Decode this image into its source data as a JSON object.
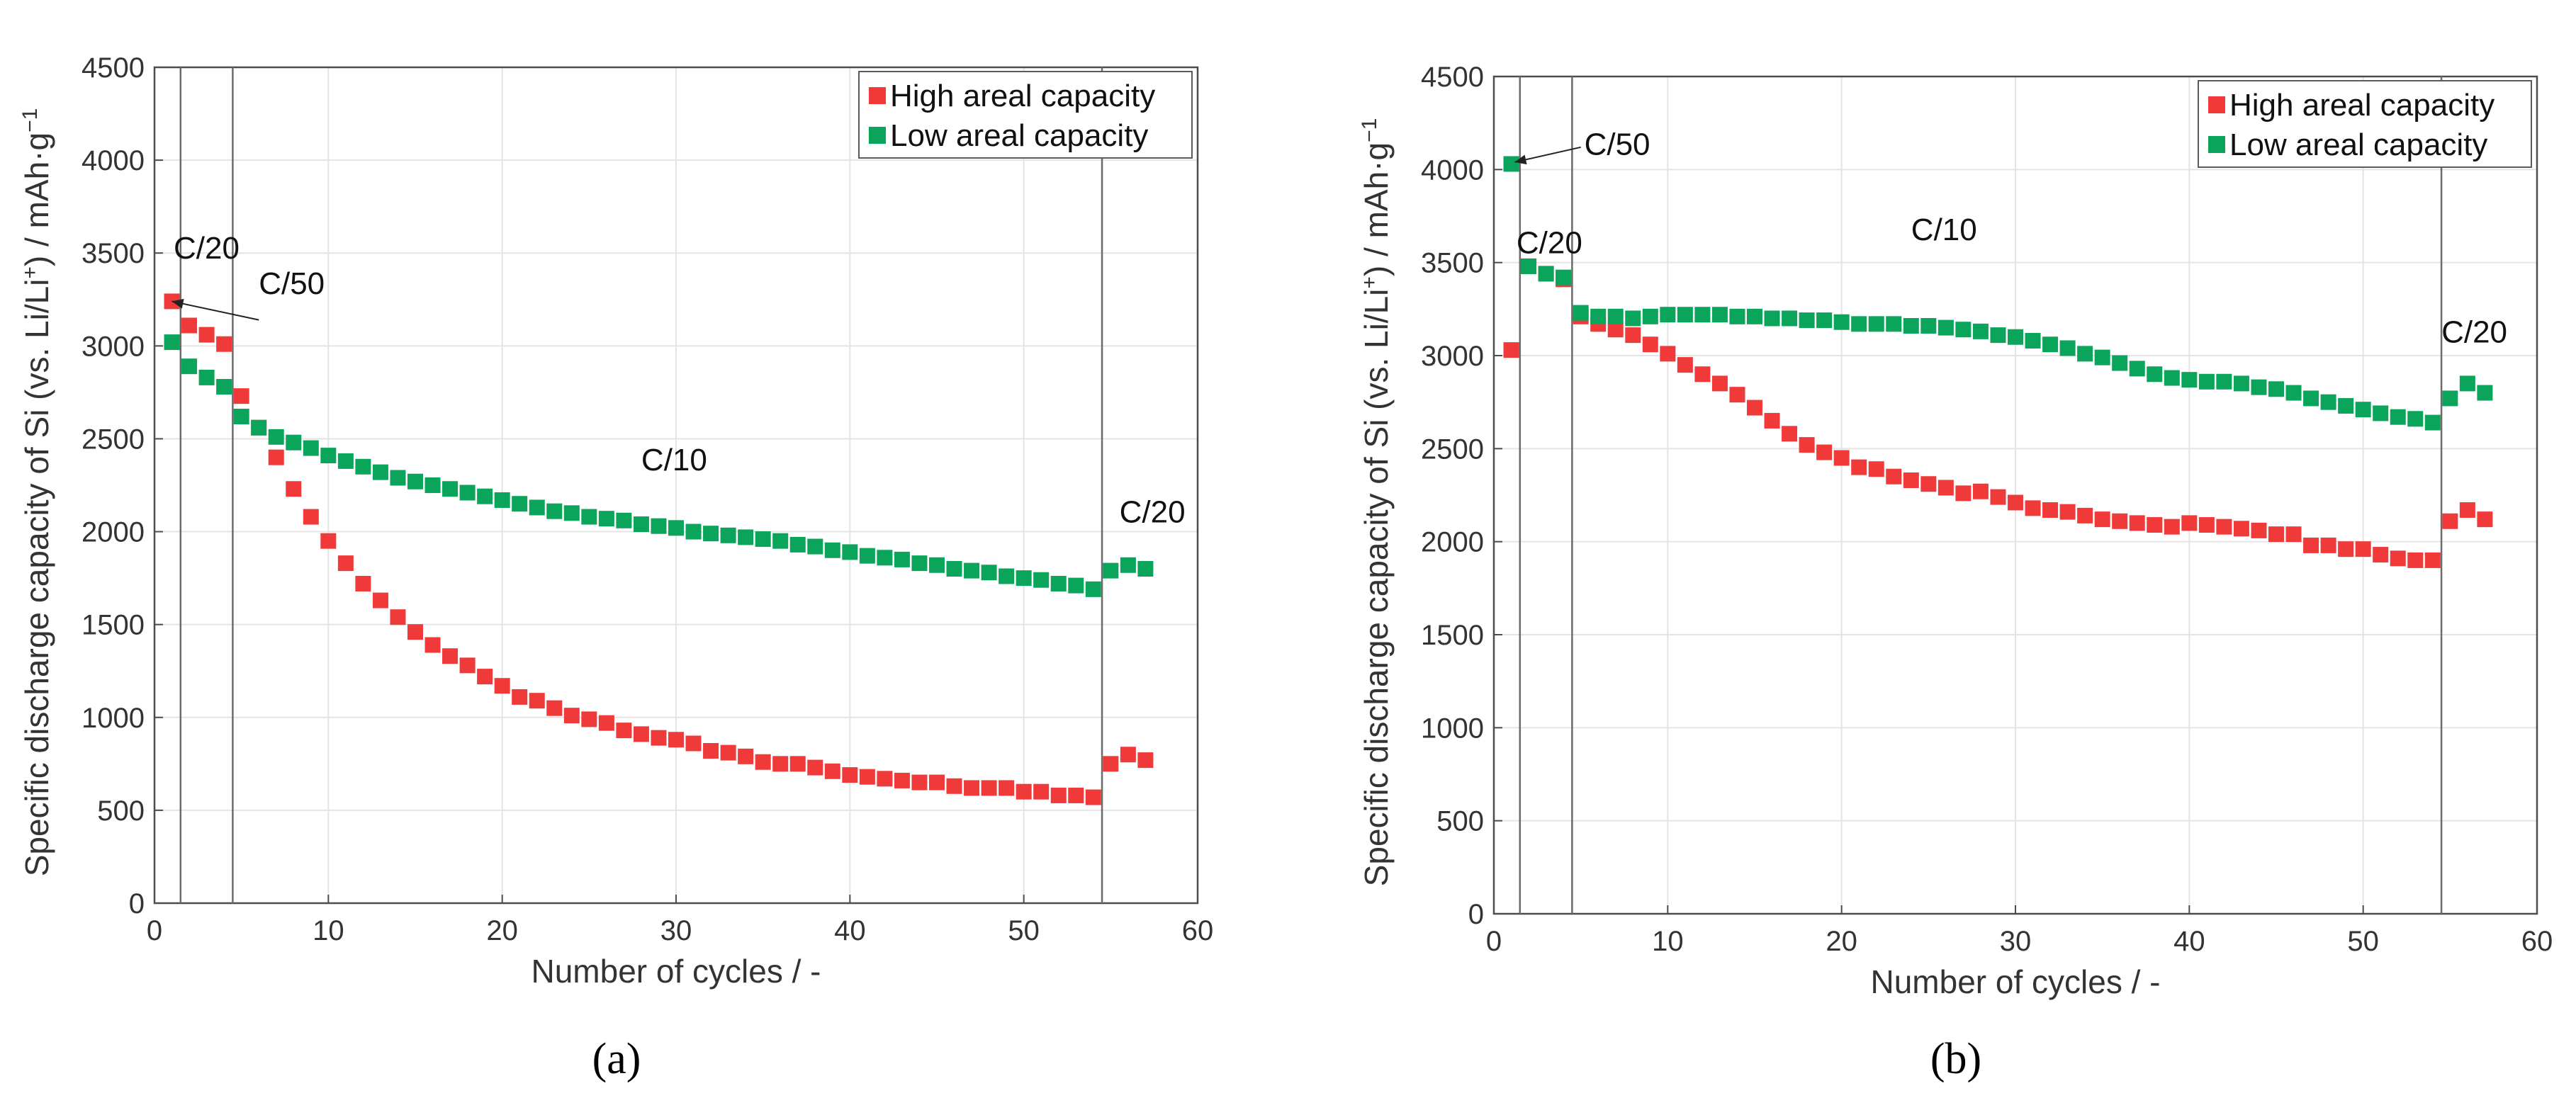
{
  "chart_data": [
    {
      "id": "a",
      "type": "scatter",
      "panel_label": "(a)",
      "xlabel": "Number of cycles / -",
      "ylabel_parts": {
        "pre": "Specific discharge capacity of Si (vs. Li/Li",
        "sup1": "+",
        "mid": ") / mAh·g",
        "sup2": "−1"
      },
      "xlim": [
        0,
        60
      ],
      "ylim": [
        0,
        4500
      ],
      "xticks": [
        0,
        10,
        20,
        30,
        40,
        50,
        60
      ],
      "yticks": [
        0,
        500,
        1000,
        1500,
        2000,
        2500,
        3000,
        3500,
        4000,
        4500
      ],
      "grid": true,
      "legend_position": "top-right",
      "vlines": [
        1.5,
        4.5,
        54.5
      ],
      "annotations": [
        {
          "text": "C/20",
          "x": 1.1,
          "y": 3470
        },
        {
          "text": "C/50",
          "x": 6,
          "y": 3280
        },
        {
          "text": "C/10",
          "x": 28,
          "y": 2330
        },
        {
          "text": "C/20",
          "x": 55.5,
          "y": 2050
        }
      ],
      "arrows": [
        {
          "from": [
            6.0,
            3140
          ],
          "to": [
            1.0,
            3240
          ]
        }
      ],
      "series": [
        {
          "name": "High areal capacity",
          "color": "#f03a3a",
          "x": [
            1,
            2,
            3,
            4,
            5,
            6,
            7,
            8,
            9,
            10,
            11,
            12,
            13,
            14,
            15,
            16,
            17,
            18,
            19,
            20,
            21,
            22,
            23,
            24,
            25,
            26,
            27,
            28,
            29,
            30,
            31,
            32,
            33,
            34,
            35,
            36,
            37,
            38,
            39,
            40,
            41,
            42,
            43,
            44,
            45,
            46,
            47,
            48,
            49,
            50,
            51,
            52,
            53,
            54,
            55,
            56,
            57
          ],
          "values": [
            3240,
            3110,
            3060,
            3010,
            2730,
            2560,
            2400,
            2230,
            2080,
            1950,
            1830,
            1720,
            1630,
            1540,
            1460,
            1390,
            1330,
            1280,
            1220,
            1170,
            1110,
            1090,
            1050,
            1010,
            990,
            970,
            930,
            910,
            890,
            880,
            860,
            820,
            810,
            790,
            760,
            750,
            750,
            730,
            710,
            690,
            680,
            670,
            660,
            650,
            650,
            630,
            620,
            620,
            620,
            600,
            600,
            580,
            580,
            570,
            750,
            800,
            770
          ]
        },
        {
          "name": "Low areal capacity",
          "color": "#0aa45a",
          "x": [
            1,
            2,
            3,
            4,
            5,
            6,
            7,
            8,
            9,
            10,
            11,
            12,
            13,
            14,
            15,
            16,
            17,
            18,
            19,
            20,
            21,
            22,
            23,
            24,
            25,
            26,
            27,
            28,
            29,
            30,
            31,
            32,
            33,
            34,
            35,
            36,
            37,
            38,
            39,
            40,
            41,
            42,
            43,
            44,
            45,
            46,
            47,
            48,
            49,
            50,
            51,
            52,
            53,
            54,
            55,
            56,
            57
          ],
          "values": [
            3020,
            2890,
            2830,
            2780,
            2620,
            2560,
            2510,
            2480,
            2450,
            2410,
            2380,
            2350,
            2320,
            2290,
            2270,
            2250,
            2230,
            2210,
            2190,
            2170,
            2150,
            2130,
            2110,
            2100,
            2080,
            2070,
            2060,
            2040,
            2030,
            2020,
            2000,
            1990,
            1980,
            1970,
            1960,
            1950,
            1930,
            1920,
            1900,
            1890,
            1870,
            1860,
            1850,
            1830,
            1820,
            1800,
            1790,
            1780,
            1760,
            1750,
            1740,
            1720,
            1710,
            1690,
            1790,
            1820,
            1800
          ]
        }
      ]
    },
    {
      "id": "b",
      "type": "scatter",
      "panel_label": "(b)",
      "xlabel": "Number of cycles / -",
      "ylabel_parts": {
        "pre": "Specific discharge capacity of Si (vs. Li/Li",
        "sup1": "+",
        "mid": ") / mAh·g",
        "sup2": "−1"
      },
      "xlim": [
        0,
        60
      ],
      "ylim": [
        0,
        4500
      ],
      "xticks": [
        0,
        10,
        20,
        30,
        40,
        50,
        60
      ],
      "yticks": [
        0,
        500,
        1000,
        1500,
        2000,
        2500,
        3000,
        3500,
        4000,
        4500
      ],
      "grid": true,
      "legend_position": "top-right",
      "vlines": [
        1.5,
        4.5,
        54.5
      ],
      "annotations": [
        {
          "text": "C/50",
          "x": 5.2,
          "y": 4080
        },
        {
          "text": "C/20",
          "x": 1.3,
          "y": 3550
        },
        {
          "text": "C/10",
          "x": 24,
          "y": 3620
        },
        {
          "text": "C/20",
          "x": 54.5,
          "y": 3070
        }
      ],
      "arrows": [
        {
          "from": [
            5.0,
            4120
          ],
          "to": [
            1.2,
            4040
          ]
        }
      ],
      "series": [
        {
          "name": "High areal capacity",
          "color": "#f03a3a",
          "x": [
            1,
            2,
            3,
            4,
            5,
            6,
            7,
            8,
            9,
            10,
            11,
            12,
            13,
            14,
            15,
            16,
            17,
            18,
            19,
            20,
            21,
            22,
            23,
            24,
            25,
            26,
            27,
            28,
            29,
            30,
            31,
            32,
            33,
            34,
            35,
            36,
            37,
            38,
            39,
            40,
            41,
            42,
            43,
            44,
            45,
            46,
            47,
            48,
            49,
            50,
            51,
            52,
            53,
            54,
            55,
            56,
            57
          ],
          "values": [
            3030,
            3480,
            3440,
            3410,
            3210,
            3170,
            3140,
            3110,
            3060,
            3010,
            2950,
            2900,
            2850,
            2790,
            2720,
            2650,
            2580,
            2520,
            2480,
            2450,
            2400,
            2390,
            2350,
            2330,
            2310,
            2290,
            2260,
            2270,
            2240,
            2210,
            2180,
            2170,
            2160,
            2140,
            2120,
            2110,
            2100,
            2090,
            2080,
            2100,
            2090,
            2080,
            2070,
            2060,
            2040,
            2040,
            1980,
            1980,
            1960,
            1960,
            1930,
            1910,
            1900,
            1900,
            2110,
            2170,
            2120
          ]
        },
        {
          "name": "Low areal capacity",
          "color": "#0aa45a",
          "x": [
            1,
            2,
            3,
            4,
            5,
            6,
            7,
            8,
            9,
            10,
            11,
            12,
            13,
            14,
            15,
            16,
            17,
            18,
            19,
            20,
            21,
            22,
            23,
            24,
            25,
            26,
            27,
            28,
            29,
            30,
            31,
            32,
            33,
            34,
            35,
            36,
            37,
            38,
            39,
            40,
            41,
            42,
            43,
            44,
            45,
            46,
            47,
            48,
            49,
            50,
            51,
            52,
            53,
            54,
            55,
            56,
            57
          ],
          "values": [
            4030,
            3480,
            3440,
            3420,
            3230,
            3210,
            3210,
            3200,
            3210,
            3220,
            3220,
            3220,
            3220,
            3210,
            3210,
            3200,
            3200,
            3190,
            3190,
            3180,
            3170,
            3170,
            3170,
            3160,
            3160,
            3150,
            3140,
            3130,
            3110,
            3100,
            3080,
            3060,
            3040,
            3010,
            2990,
            2960,
            2930,
            2900,
            2880,
            2870,
            2860,
            2860,
            2850,
            2830,
            2820,
            2800,
            2770,
            2750,
            2730,
            2710,
            2690,
            2670,
            2660,
            2640,
            2770,
            2850,
            2800
          ]
        }
      ]
    }
  ]
}
